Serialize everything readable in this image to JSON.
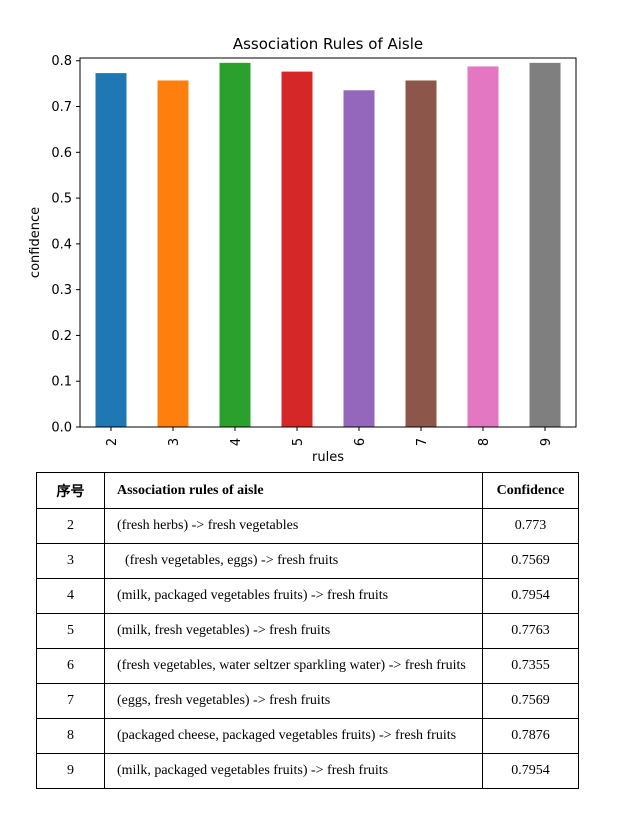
{
  "chart_data": {
    "type": "bar",
    "title": "Association Rules of Aisle",
    "xlabel": "rules",
    "ylabel": "confidence",
    "categories": [
      "2",
      "3",
      "4",
      "5",
      "6",
      "7",
      "8",
      "9"
    ],
    "values": [
      0.773,
      0.7569,
      0.7954,
      0.7763,
      0.7355,
      0.7569,
      0.7876,
      0.7954
    ],
    "colors": [
      "#1f77b4",
      "#ff7f0e",
      "#2ca02c",
      "#d62728",
      "#9467bd",
      "#8c564b",
      "#e377c2",
      "#7f7f7f"
    ],
    "ylim": [
      0,
      0.8
    ],
    "yticks": [
      "0.0",
      "0.1",
      "0.2",
      "0.3",
      "0.4",
      "0.5",
      "0.6",
      "0.7",
      "0.8"
    ],
    "grid": false,
    "legend": "none"
  },
  "table": {
    "headers": {
      "index": "序号",
      "rule": "Association rules of aisle",
      "confidence": "Confidence"
    },
    "rows": [
      {
        "index": "2",
        "rule": "(fresh herbs) -> fresh vegetables",
        "confidence": "0.773"
      },
      {
        "index": "3",
        "rule": "(fresh vegetables, eggs) -> fresh fruits",
        "confidence": "0.7569"
      },
      {
        "index": "4",
        "rule": "(milk, packaged vegetables fruits) -> fresh fruits",
        "confidence": "0.7954"
      },
      {
        "index": "5",
        "rule": "(milk, fresh vegetables) -> fresh fruits",
        "confidence": "0.7763"
      },
      {
        "index": "6",
        "rule": "(fresh vegetables, water seltzer sparkling water) -> fresh fruits",
        "confidence": "0.7355"
      },
      {
        "index": "7",
        "rule": "(eggs, fresh vegetables) -> fresh fruits",
        "confidence": "0.7569"
      },
      {
        "index": "8",
        "rule": "(packaged cheese, packaged vegetables fruits) -> fresh fruits",
        "confidence": "0.7876"
      },
      {
        "index": "9",
        "rule": "(milk, packaged vegetables fruits) -> fresh fruits",
        "confidence": "0.7954"
      }
    ]
  }
}
